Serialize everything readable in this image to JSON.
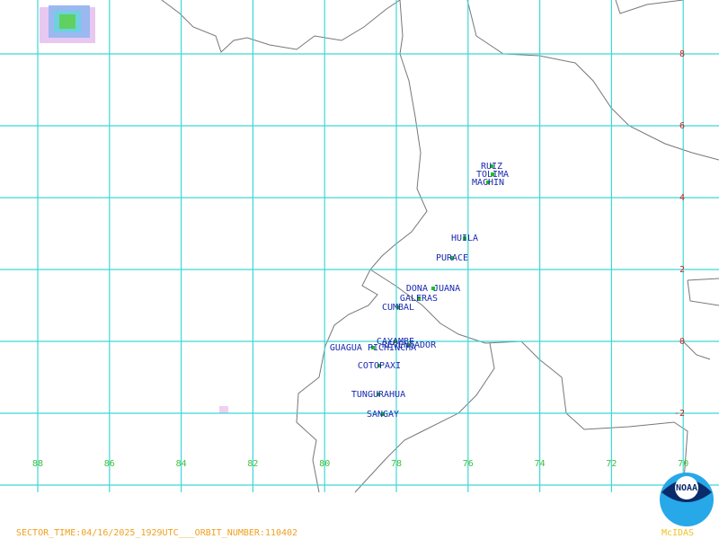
{
  "map": {
    "lon_labels": [
      "88",
      "86",
      "84",
      "82",
      "80",
      "78",
      "76",
      "74",
      "72",
      "70"
    ],
    "lat_labels": [
      "8",
      "6",
      "4",
      "2",
      "0",
      "-2"
    ],
    "volcanoes": [
      "RUIZ",
      "TOLIMA",
      "MACHIN",
      "HUILA",
      "PURACE",
      "DONA JUANA",
      "GALERAS",
      "CUMBAL",
      "CAYAMBE",
      "REVENTADOR",
      "GUAGUA PICHINCHA",
      "COTOPAXI",
      "TUNGURAHUA",
      "SANGAY"
    ],
    "footer": "SECTOR_TIME:04/16/2025_1929UTC___ORBIT_NUMBER:110402",
    "logo": "NOAA",
    "software": "McIDAS"
  }
}
